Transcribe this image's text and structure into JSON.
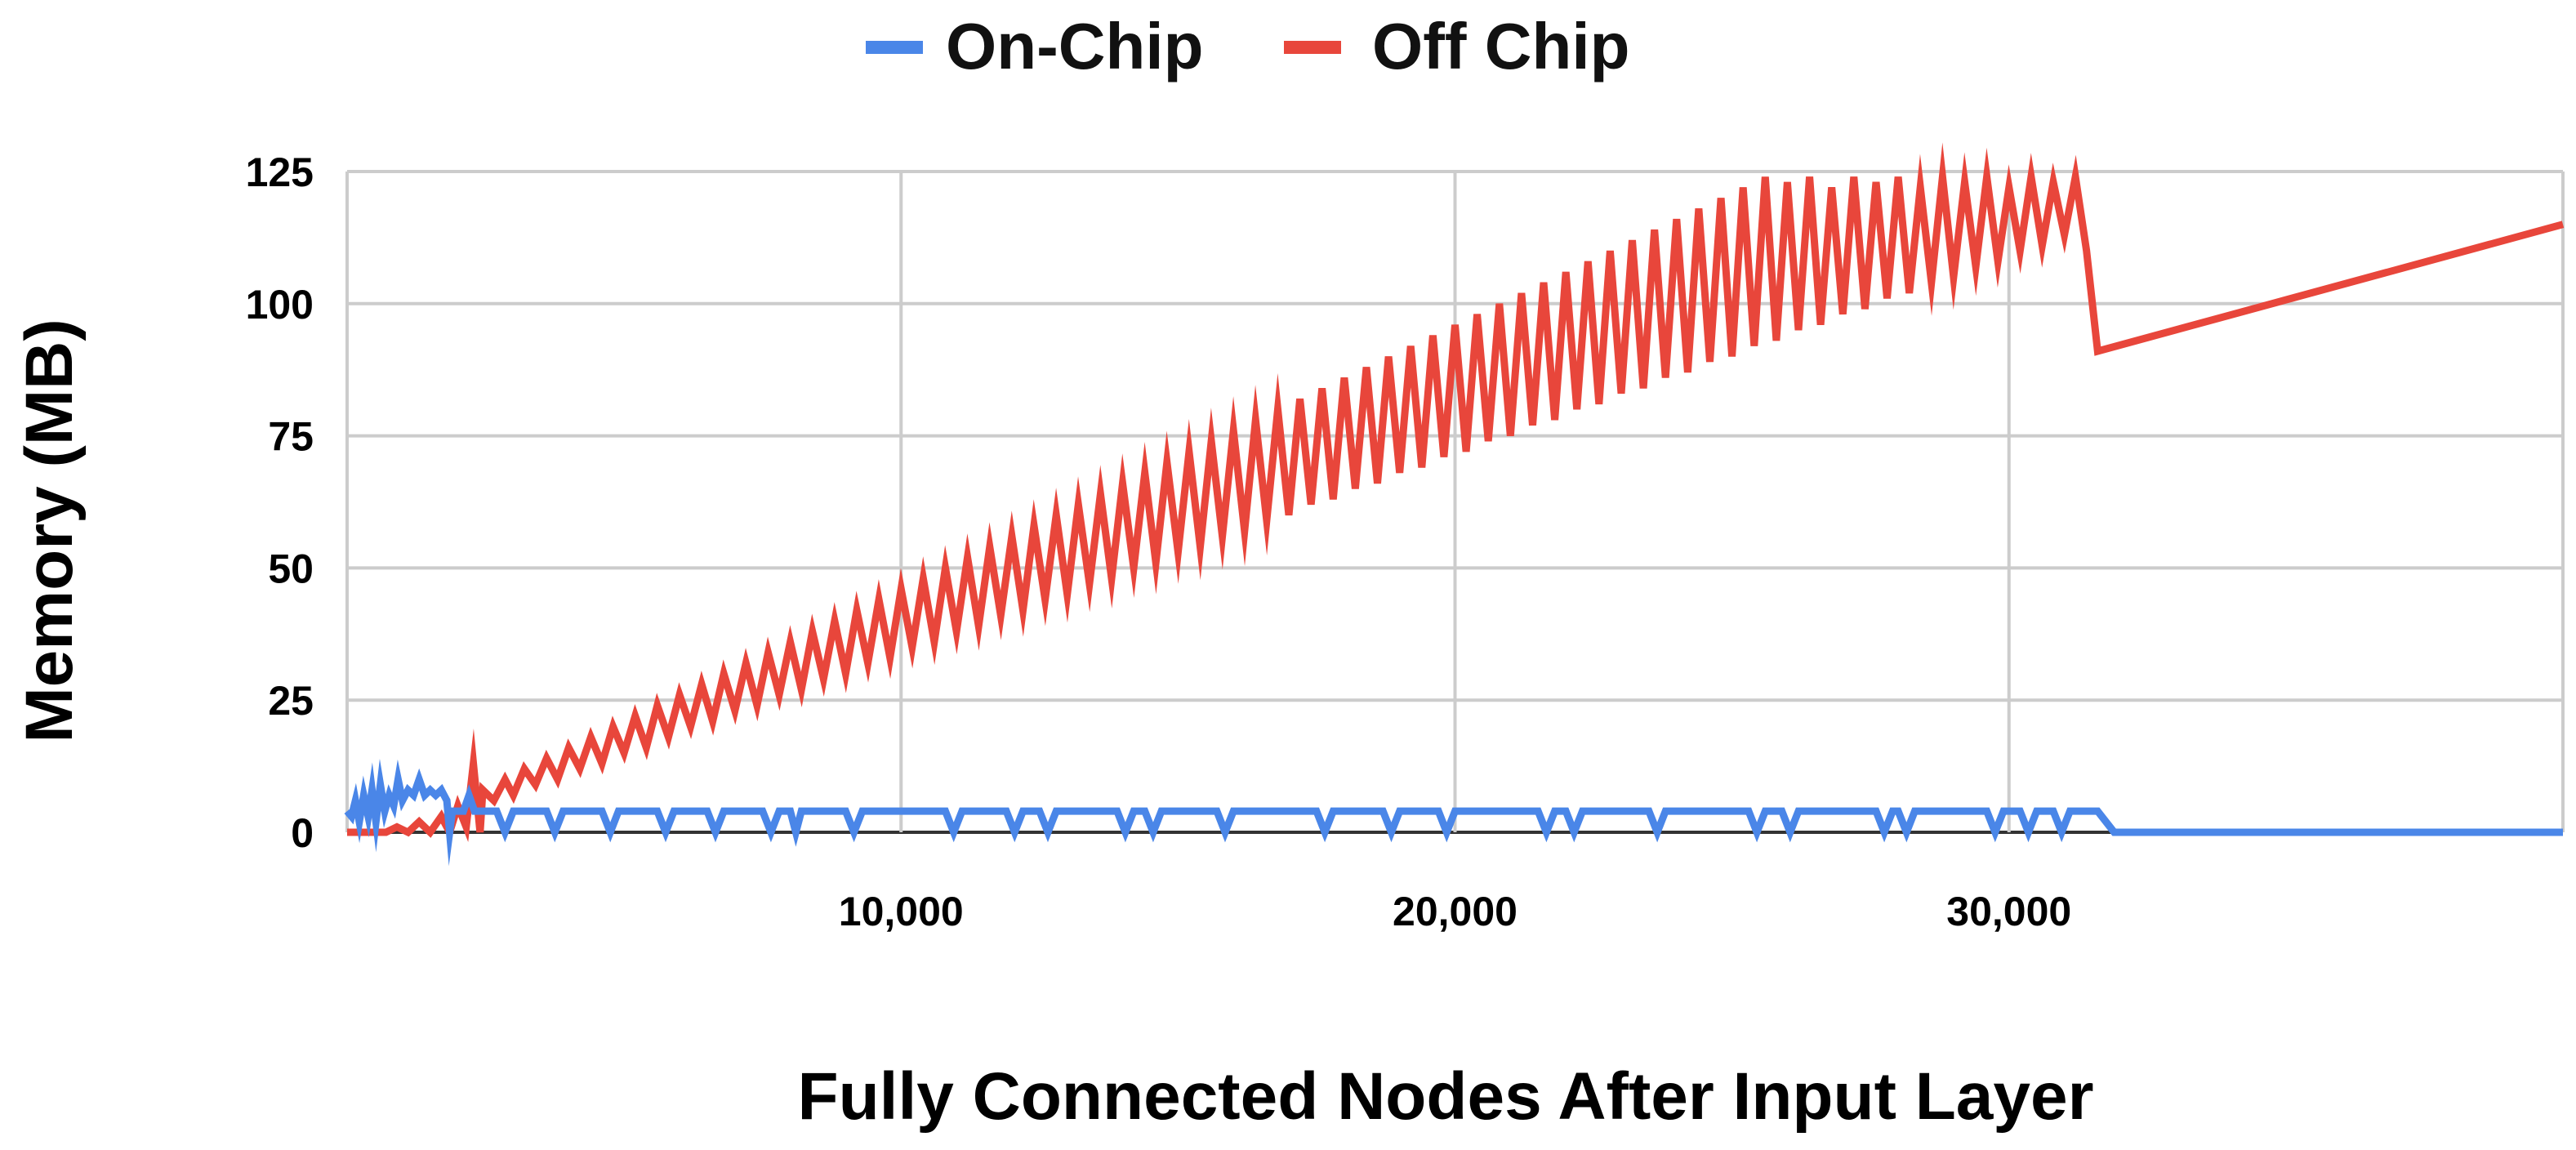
{
  "chart_data": {
    "type": "line",
    "title": "",
    "xlabel": "Fully Connected Nodes After Input Layer",
    "ylabel": "Memory (MB)",
    "xlim": [
      0,
      40000
    ],
    "ylim": [
      0,
      125
    ],
    "x_ticks": [
      10000,
      20000,
      30000
    ],
    "x_tick_labels": [
      "10,000",
      "20,000",
      "30,000"
    ],
    "y_ticks": [
      0,
      25,
      50,
      75,
      100,
      125
    ],
    "y_tick_labels": [
      "0",
      "25",
      "50",
      "75",
      "100",
      "125"
    ],
    "grid": true,
    "legend_position": "top-center",
    "series": [
      {
        "name": "On-Chip",
        "color": "#4a86e8",
        "points": [
          [
            0,
            4
          ],
          [
            80,
            3
          ],
          [
            150,
            6
          ],
          [
            220,
            2
          ],
          [
            300,
            7
          ],
          [
            380,
            3
          ],
          [
            450,
            8
          ],
          [
            520,
            2
          ],
          [
            600,
            9
          ],
          [
            680,
            4
          ],
          [
            760,
            7
          ],
          [
            840,
            5
          ],
          [
            920,
            10
          ],
          [
            1000,
            6
          ],
          [
            1100,
            8
          ],
          [
            1200,
            7
          ],
          [
            1300,
            10
          ],
          [
            1400,
            7
          ],
          [
            1500,
            8
          ],
          [
            1600,
            7
          ],
          [
            1700,
            8
          ],
          [
            1800,
            6
          ],
          [
            1850,
            0
          ],
          [
            1900,
            4
          ],
          [
            2100,
            4
          ],
          [
            2200,
            7
          ],
          [
            2300,
            4
          ],
          [
            2500,
            4
          ],
          [
            2700,
            4
          ],
          [
            2850,
            0
          ],
          [
            3000,
            4
          ],
          [
            3600,
            4
          ],
          [
            3750,
            0
          ],
          [
            3900,
            4
          ],
          [
            4600,
            4
          ],
          [
            4750,
            0
          ],
          [
            4900,
            4
          ],
          [
            5600,
            4
          ],
          [
            5750,
            0
          ],
          [
            5900,
            4
          ],
          [
            6500,
            4
          ],
          [
            6650,
            0
          ],
          [
            6800,
            4
          ],
          [
            7500,
            4
          ],
          [
            7650,
            0
          ],
          [
            7800,
            4
          ],
          [
            8000,
            4
          ],
          [
            8100,
            0
          ],
          [
            8200,
            4
          ],
          [
            9000,
            4
          ],
          [
            9150,
            0
          ],
          [
            9300,
            4
          ],
          [
            10800,
            4
          ],
          [
            10950,
            0
          ],
          [
            11100,
            4
          ],
          [
            11900,
            4
          ],
          [
            12050,
            0
          ],
          [
            12200,
            4
          ],
          [
            12500,
            4
          ],
          [
            12650,
            0
          ],
          [
            12800,
            4
          ],
          [
            13900,
            4
          ],
          [
            14050,
            0
          ],
          [
            14200,
            4
          ],
          [
            14400,
            4
          ],
          [
            14550,
            0
          ],
          [
            14700,
            4
          ],
          [
            15700,
            4
          ],
          [
            15850,
            0
          ],
          [
            16000,
            4
          ],
          [
            17500,
            4
          ],
          [
            17650,
            0
          ],
          [
            17800,
            4
          ],
          [
            18700,
            4
          ],
          [
            18850,
            0
          ],
          [
            19000,
            4
          ],
          [
            19700,
            4
          ],
          [
            19850,
            0
          ],
          [
            20000,
            4
          ],
          [
            21500,
            4
          ],
          [
            21650,
            0
          ],
          [
            21800,
            4
          ],
          [
            22000,
            4
          ],
          [
            22150,
            0
          ],
          [
            22300,
            4
          ],
          [
            23500,
            4
          ],
          [
            23650,
            0
          ],
          [
            23800,
            4
          ],
          [
            25300,
            4
          ],
          [
            25450,
            0
          ],
          [
            25600,
            4
          ],
          [
            25900,
            4
          ],
          [
            26050,
            0
          ],
          [
            26200,
            4
          ],
          [
            27600,
            4
          ],
          [
            27750,
            0
          ],
          [
            27900,
            4
          ],
          [
            28000,
            4
          ],
          [
            28150,
            0
          ],
          [
            28300,
            4
          ],
          [
            29600,
            4
          ],
          [
            29750,
            0
          ],
          [
            29900,
            4
          ],
          [
            30200,
            4
          ],
          [
            30350,
            0
          ],
          [
            30500,
            4
          ],
          [
            30800,
            4
          ],
          [
            30950,
            0
          ],
          [
            31100,
            4
          ],
          [
            31600,
            4
          ],
          [
            31900,
            0
          ],
          [
            40000,
            0
          ]
        ]
      },
      {
        "name": "Off Chip",
        "color": "#e8463b",
        "points": [
          [
            0,
            0
          ],
          [
            500,
            0
          ],
          [
            700,
            0
          ],
          [
            900,
            1
          ],
          [
            1100,
            0
          ],
          [
            1300,
            2
          ],
          [
            1500,
            0
          ],
          [
            1700,
            3
          ],
          [
            1850,
            0
          ],
          [
            2000,
            5
          ],
          [
            2150,
            1
          ],
          [
            2280,
            13
          ],
          [
            2400,
            0
          ],
          [
            2450,
            8
          ],
          [
            2650,
            6
          ],
          [
            2850,
            10
          ],
          [
            3000,
            7
          ],
          [
            3200,
            12
          ],
          [
            3400,
            9
          ],
          [
            3600,
            14
          ],
          [
            3800,
            10
          ],
          [
            4000,
            16
          ],
          [
            4200,
            12
          ],
          [
            4400,
            18
          ],
          [
            4600,
            13
          ],
          [
            4800,
            20
          ],
          [
            5000,
            15
          ],
          [
            5200,
            22
          ],
          [
            5400,
            16
          ],
          [
            5600,
            24
          ],
          [
            5800,
            18
          ],
          [
            6000,
            26
          ],
          [
            6200,
            20
          ],
          [
            6400,
            28
          ],
          [
            6600,
            21
          ],
          [
            6800,
            30
          ],
          [
            7000,
            23
          ],
          [
            7200,
            32
          ],
          [
            7400,
            24
          ],
          [
            7600,
            34
          ],
          [
            7800,
            26
          ],
          [
            8000,
            36
          ],
          [
            8200,
            27
          ],
          [
            8400,
            38
          ],
          [
            8600,
            29
          ],
          [
            8800,
            40
          ],
          [
            9000,
            30
          ],
          [
            9200,
            42
          ],
          [
            9400,
            32
          ],
          [
            9600,
            44
          ],
          [
            9800,
            33
          ],
          [
            10000,
            46
          ],
          [
            10200,
            35
          ],
          [
            10400,
            48
          ],
          [
            10600,
            36
          ],
          [
            10800,
            50
          ],
          [
            11000,
            38
          ],
          [
            11200,
            52
          ],
          [
            11400,
            39
          ],
          [
            11600,
            54
          ],
          [
            11800,
            41
          ],
          [
            12000,
            56
          ],
          [
            12200,
            42
          ],
          [
            12400,
            58
          ],
          [
            12600,
            44
          ],
          [
            12800,
            60
          ],
          [
            13000,
            45
          ],
          [
            13200,
            62
          ],
          [
            13400,
            47
          ],
          [
            13600,
            64
          ],
          [
            13800,
            48
          ],
          [
            14000,
            66
          ],
          [
            14200,
            50
          ],
          [
            14400,
            68
          ],
          [
            14600,
            51
          ],
          [
            14800,
            70
          ],
          [
            15000,
            53
          ],
          [
            15200,
            72
          ],
          [
            15400,
            54
          ],
          [
            15600,
            74
          ],
          [
            15800,
            56
          ],
          [
            16000,
            76
          ],
          [
            16200,
            57
          ],
          [
            16400,
            78
          ],
          [
            16600,
            59
          ],
          [
            16800,
            80
          ],
          [
            17000,
            60
          ],
          [
            17200,
            82
          ],
          [
            17400,
            62
          ],
          [
            17600,
            84
          ],
          [
            17800,
            63
          ],
          [
            18000,
            86
          ],
          [
            18200,
            65
          ],
          [
            18400,
            88
          ],
          [
            18600,
            66
          ],
          [
            18800,
            90
          ],
          [
            19000,
            68
          ],
          [
            19200,
            92
          ],
          [
            19400,
            69
          ],
          [
            19600,
            94
          ],
          [
            19800,
            71
          ],
          [
            20000,
            96
          ],
          [
            20200,
            72
          ],
          [
            20400,
            98
          ],
          [
            20600,
            74
          ],
          [
            20800,
            100
          ],
          [
            21000,
            75
          ],
          [
            21200,
            102
          ],
          [
            21400,
            77
          ],
          [
            21600,
            104
          ],
          [
            21800,
            78
          ],
          [
            22000,
            106
          ],
          [
            22200,
            80
          ],
          [
            22400,
            108
          ],
          [
            22600,
            81
          ],
          [
            22800,
            110
          ],
          [
            23000,
            83
          ],
          [
            23200,
            112
          ],
          [
            23400,
            84
          ],
          [
            23600,
            114
          ],
          [
            23800,
            86
          ],
          [
            24000,
            116
          ],
          [
            24200,
            87
          ],
          [
            24400,
            118
          ],
          [
            24600,
            89
          ],
          [
            24800,
            120
          ],
          [
            25000,
            90
          ],
          [
            25200,
            122
          ],
          [
            25400,
            92
          ],
          [
            25600,
            124
          ],
          [
            25800,
            93
          ],
          [
            26000,
            123
          ],
          [
            26200,
            95
          ],
          [
            26400,
            124
          ],
          [
            26600,
            96
          ],
          [
            26800,
            122
          ],
          [
            27000,
            98
          ],
          [
            27200,
            124
          ],
          [
            27400,
            99
          ],
          [
            27600,
            123
          ],
          [
            27800,
            101
          ],
          [
            28000,
            124
          ],
          [
            28200,
            102
          ],
          [
            28400,
            122
          ],
          [
            28600,
            104
          ],
          [
            28800,
            124
          ],
          [
            29000,
            105
          ],
          [
            29200,
            123
          ],
          [
            29400,
            107
          ],
          [
            29600,
            124
          ],
          [
            29800,
            108
          ],
          [
            30000,
            122
          ],
          [
            30200,
            110
          ],
          [
            30400,
            124
          ],
          [
            30600,
            111
          ],
          [
            30800,
            123
          ],
          [
            31000,
            113
          ],
          [
            31200,
            124
          ],
          [
            31400,
            110
          ],
          [
            31600,
            91
          ],
          [
            40000,
            115
          ]
        ]
      }
    ]
  }
}
